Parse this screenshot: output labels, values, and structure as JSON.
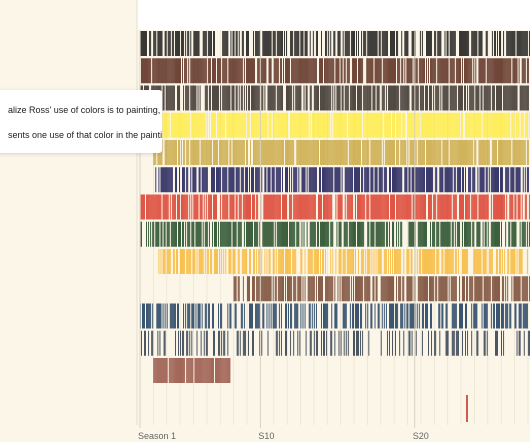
{
  "intro": {
    "paragraph_1": "alize Ross' use of colors is to painting, one by one.",
    "paragraph_2": "sents one use of that color in the paintings arranged cally on the X axis)."
  },
  "chart_data": {
    "type": "barcode",
    "x_ticks": [
      {
        "episode": 1,
        "label": "Season 1"
      },
      {
        "episode": 118,
        "label": "S10"
      },
      {
        "episode": 268,
        "label": "S20"
      }
    ],
    "xlim": [
      1,
      380
    ],
    "grid": true,
    "series": [
      {
        "color": "#0a0a0a",
        "density": 0.58,
        "start": 1,
        "end": 380
      },
      {
        "color": "#4e1d0f",
        "density": 0.8,
        "start": 1,
        "end": 380
      },
      {
        "color": "#2a211c",
        "density": 0.78,
        "start": 1,
        "end": 380
      },
      {
        "color": "#ffeb3b",
        "density": 0.88,
        "start": 1,
        "end": 380
      },
      {
        "color": "#c7a43a",
        "density": 0.86,
        "start": 14,
        "end": 380
      },
      {
        "color": "#0c0c4e",
        "density": 0.74,
        "start": 14,
        "end": 380
      },
      {
        "color": "#d8301f",
        "density": 0.8,
        "start": 1,
        "end": 380
      },
      {
        "color": "#0f3d15",
        "density": 0.72,
        "start": 1,
        "end": 380
      },
      {
        "color": "#f7b62f",
        "density": 0.66,
        "start": 18,
        "end": 380
      },
      {
        "color": "#6b3a24",
        "density": 0.76,
        "start": 92,
        "end": 380
      },
      {
        "color": "#0d2f55",
        "density": 0.54,
        "start": 1,
        "end": 380
      },
      {
        "color": "#213041",
        "density": 0.34,
        "start": 1,
        "end": 380
      },
      {
        "color": "#8e4638",
        "density": 0.95,
        "start": 14,
        "end": 88
      }
    ],
    "annotation_mark": {
      "episode": 318,
      "color": "#c0392b"
    }
  }
}
